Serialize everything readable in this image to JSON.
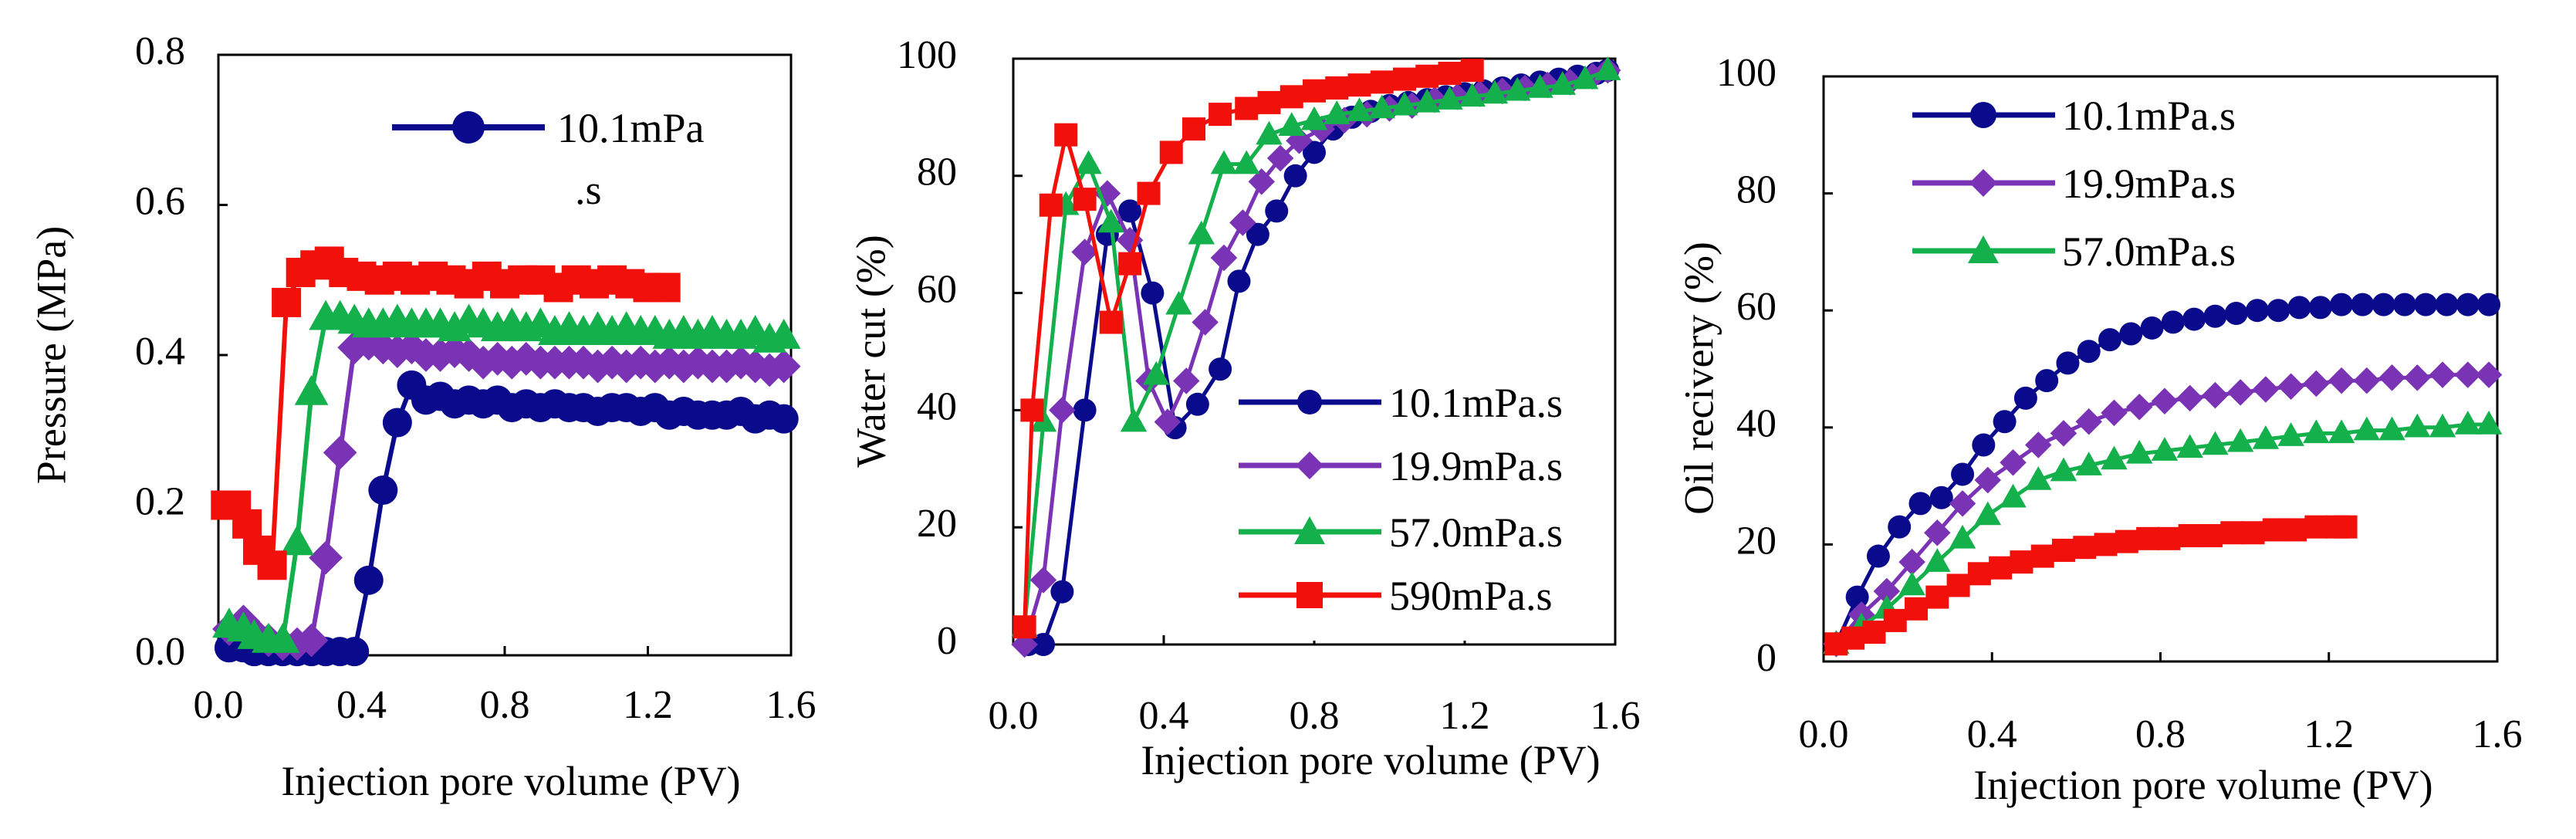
{
  "colors": {
    "s1": "#0a0a8c",
    "s2": "#7b33b5",
    "s3": "#13b04b",
    "s4": "#f2100b"
  },
  "chart_data": [
    {
      "type": "line",
      "title": "",
      "xlabel": "Injection pore volume (PV)",
      "ylabel": "Pressure (MPa)",
      "xlim": [
        0,
        1.6
      ],
      "ylim": [
        0,
        0.8
      ],
      "xticks": [
        "0.0",
        "0.4",
        "0.8",
        "1.2",
        "1.6"
      ],
      "yticks": [
        "0.0",
        "0.2",
        "0.4",
        "0.6",
        "0.8"
      ],
      "grid": false,
      "legend": [
        {
          "label": "10.1mPa",
          "label2": ".s",
          "series": 0
        }
      ],
      "series": [
        {
          "name": "10.1mPa.s",
          "color": "#0a0a8c",
          "marker": "circle",
          "x": [
            0.03,
            0.07,
            0.1,
            0.14,
            0.18,
            0.22,
            0.26,
            0.3,
            0.34,
            0.38,
            0.42,
            0.46,
            0.5,
            0.54,
            0.58,
            0.62,
            0.66,
            0.7,
            0.74,
            0.78,
            0.82,
            0.86,
            0.9,
            0.94,
            0.98,
            1.02,
            1.06,
            1.1,
            1.14,
            1.18,
            1.22,
            1.26,
            1.3,
            1.34,
            1.38,
            1.42,
            1.46,
            1.5,
            1.54,
            1.58
          ],
          "y": [
            0.01,
            0.01,
            0.005,
            0.005,
            0.005,
            0.005,
            0.005,
            0.005,
            0.005,
            0.005,
            0.1,
            0.22,
            0.31,
            0.36,
            0.34,
            0.345,
            0.335,
            0.34,
            0.335,
            0.34,
            0.33,
            0.335,
            0.33,
            0.335,
            0.33,
            0.33,
            0.325,
            0.33,
            0.33,
            0.325,
            0.33,
            0.32,
            0.325,
            0.32,
            0.32,
            0.32,
            0.325,
            0.315,
            0.32,
            0.315
          ]
        },
        {
          "name": "19.9mPa.s",
          "color": "#7b33b5",
          "marker": "diamond",
          "x": [
            0.03,
            0.07,
            0.1,
            0.14,
            0.18,
            0.22,
            0.26,
            0.3,
            0.34,
            0.38,
            0.42,
            0.46,
            0.5,
            0.54,
            0.58,
            0.62,
            0.66,
            0.7,
            0.74,
            0.78,
            0.82,
            0.86,
            0.9,
            0.94,
            0.98,
            1.02,
            1.06,
            1.1,
            1.14,
            1.18,
            1.22,
            1.26,
            1.3,
            1.34,
            1.38,
            1.42,
            1.46,
            1.5,
            1.54,
            1.58
          ],
          "y": [
            0.035,
            0.045,
            0.03,
            0.02,
            0.015,
            0.015,
            0.02,
            0.13,
            0.27,
            0.41,
            0.415,
            0.41,
            0.405,
            0.41,
            0.4,
            0.4,
            0.405,
            0.4,
            0.39,
            0.395,
            0.39,
            0.395,
            0.39,
            0.39,
            0.39,
            0.39,
            0.385,
            0.39,
            0.385,
            0.39,
            0.385,
            0.39,
            0.385,
            0.39,
            0.385,
            0.385,
            0.39,
            0.385,
            0.38,
            0.385
          ]
        },
        {
          "name": "57.0mPa.s",
          "color": "#13b04b",
          "marker": "triangle",
          "x": [
            0.03,
            0.07,
            0.1,
            0.14,
            0.18,
            0.22,
            0.26,
            0.3,
            0.34,
            0.38,
            0.42,
            0.46,
            0.5,
            0.54,
            0.58,
            0.62,
            0.66,
            0.7,
            0.74,
            0.78,
            0.82,
            0.86,
            0.9,
            0.94,
            0.98,
            1.02,
            1.06,
            1.1,
            1.14,
            1.18,
            1.22,
            1.26,
            1.3,
            1.34,
            1.38,
            1.42,
            1.46,
            1.5,
            1.54,
            1.58
          ],
          "y": [
            0.04,
            0.035,
            0.025,
            0.02,
            0.02,
            0.15,
            0.35,
            0.45,
            0.45,
            0.445,
            0.44,
            0.44,
            0.445,
            0.44,
            0.44,
            0.44,
            0.435,
            0.445,
            0.44,
            0.435,
            0.44,
            0.435,
            0.44,
            0.43,
            0.435,
            0.43,
            0.435,
            0.43,
            0.435,
            0.43,
            0.43,
            0.425,
            0.43,
            0.425,
            0.43,
            0.425,
            0.425,
            0.43,
            0.42,
            0.425
          ]
        },
        {
          "name": "590mPa.s",
          "color": "#f2100b",
          "marker": "square",
          "x": [
            0.02,
            0.05,
            0.08,
            0.11,
            0.15,
            0.19,
            0.23,
            0.27,
            0.31,
            0.35,
            0.4,
            0.45,
            0.5,
            0.55,
            0.6,
            0.65,
            0.7,
            0.75,
            0.8,
            0.85,
            0.9,
            0.95,
            1.0,
            1.05,
            1.1,
            1.15,
            1.2,
            1.25
          ],
          "y": [
            0.2,
            0.2,
            0.175,
            0.14,
            0.12,
            0.47,
            0.51,
            0.52,
            0.525,
            0.51,
            0.505,
            0.5,
            0.505,
            0.5,
            0.505,
            0.5,
            0.495,
            0.505,
            0.495,
            0.5,
            0.5,
            0.49,
            0.5,
            0.495,
            0.5,
            0.495,
            0.49,
            0.49
          ]
        }
      ]
    },
    {
      "type": "line",
      "title": "",
      "xlabel": "Injection pore volume (PV)",
      "ylabel": "Water cut (%)",
      "xlim": [
        0,
        1.6
      ],
      "ylim": [
        0,
        100
      ],
      "xticks": [
        "0.0",
        "0.4",
        "0.8",
        "1.2",
        "1.6"
      ],
      "yticks": [
        "0",
        "20",
        "40",
        "60",
        "80",
        "100"
      ],
      "grid": false,
      "legend": [
        {
          "label": "10.1mPa.s",
          "series": 0
        },
        {
          "label": "19.9mPa.s",
          "series": 1
        },
        {
          "label": "57.0mPa.s",
          "series": 2
        },
        {
          "label": "590mPa.s",
          "series": 3
        }
      ],
      "series": [
        {
          "name": "10.1mPa.s",
          "color": "#0a0a8c",
          "marker": "circle",
          "x": [
            0.04,
            0.08,
            0.13,
            0.19,
            0.25,
            0.31,
            0.37,
            0.43,
            0.49,
            0.55,
            0.6,
            0.65,
            0.7,
            0.75,
            0.8,
            0.85,
            0.9,
            0.95,
            1.0,
            1.05,
            1.1,
            1.15,
            1.2,
            1.25,
            1.3,
            1.35,
            1.4,
            1.45,
            1.5,
            1.55,
            1.58
          ],
          "y": [
            0,
            0,
            9,
            40,
            70,
            74,
            60,
            37,
            41,
            47,
            62,
            70,
            74,
            80,
            84,
            88,
            90,
            91,
            92,
            92.5,
            93,
            93.5,
            94,
            94.5,
            95,
            95.5,
            96,
            96.5,
            97,
            97.5,
            98
          ]
        },
        {
          "name": "19.9mPa.s",
          "color": "#7b33b5",
          "marker": "diamond",
          "x": [
            0.03,
            0.08,
            0.13,
            0.19,
            0.25,
            0.31,
            0.36,
            0.41,
            0.46,
            0.51,
            0.56,
            0.61,
            0.66,
            0.71,
            0.76,
            0.82,
            0.88,
            0.94,
            1.0,
            1.06,
            1.12,
            1.18,
            1.24,
            1.3,
            1.36,
            1.42,
            1.48,
            1.54,
            1.58
          ],
          "y": [
            0,
            11,
            40,
            67,
            77,
            69,
            45,
            38,
            45,
            55,
            66,
            72,
            79,
            83,
            86,
            88,
            89.5,
            90.5,
            91.5,
            92,
            93,
            93.5,
            94,
            94.5,
            95,
            95.5,
            96,
            97,
            98
          ]
        },
        {
          "name": "57.0mPa.s",
          "color": "#13b04b",
          "marker": "triangle",
          "x": [
            0.03,
            0.08,
            0.14,
            0.2,
            0.26,
            0.32,
            0.38,
            0.44,
            0.5,
            0.56,
            0.62,
            0.68,
            0.74,
            0.8,
            0.86,
            0.92,
            0.98,
            1.04,
            1.1,
            1.16,
            1.22,
            1.28,
            1.34,
            1.4,
            1.46,
            1.52,
            1.58
          ],
          "y": [
            3,
            38,
            75,
            82,
            72,
            38,
            46,
            58,
            70,
            82,
            82,
            87,
            88.5,
            89.5,
            90.5,
            91,
            91.5,
            92,
            92.5,
            93,
            93.5,
            94,
            94.5,
            95,
            95.5,
            96.5,
            98
          ]
        },
        {
          "name": "590mPa.s",
          "color": "#f2100b",
          "marker": "square",
          "x": [
            0.03,
            0.05,
            0.1,
            0.14,
            0.19,
            0.26,
            0.31,
            0.36,
            0.42,
            0.48,
            0.55,
            0.62,
            0.68,
            0.74,
            0.8,
            0.86,
            0.92,
            0.98,
            1.04,
            1.1,
            1.16,
            1.22
          ],
          "y": [
            3,
            40,
            75,
            87,
            76,
            55,
            65,
            77,
            84,
            88,
            90.5,
            91.5,
            92.5,
            93.5,
            94.5,
            95,
            95.5,
            96,
            96.5,
            97,
            97.5,
            98
          ]
        }
      ]
    },
    {
      "type": "line",
      "title": "",
      "xlabel": "Injection pore volume (PV)",
      "ylabel": "Oil recivery (%)",
      "xlim": [
        0,
        1.6
      ],
      "ylim": [
        0,
        100
      ],
      "xticks": [
        "0.0",
        "0.4",
        "0.8",
        "1.2",
        "1.6"
      ],
      "yticks": [
        "0",
        "20",
        "40",
        "60",
        "80",
        "100"
      ],
      "grid": false,
      "legend": [
        {
          "label": "10.1mPa.s",
          "series": 0
        },
        {
          "label": "19.9mPa.s",
          "series": 1
        },
        {
          "label": "57.0mPa.s",
          "series": 2
        }
      ],
      "series": [
        {
          "name": "10.1mPa.s",
          "color": "#0a0a8c",
          "marker": "circle",
          "x": [
            0.03,
            0.08,
            0.13,
            0.18,
            0.23,
            0.28,
            0.33,
            0.38,
            0.43,
            0.48,
            0.53,
            0.58,
            0.63,
            0.68,
            0.73,
            0.78,
            0.83,
            0.88,
            0.93,
            0.98,
            1.03,
            1.08,
            1.13,
            1.18,
            1.23,
            1.28,
            1.33,
            1.38,
            1.43,
            1.48,
            1.53,
            1.58
          ],
          "y": [
            3,
            11,
            18,
            23,
            27,
            28,
            32,
            37,
            41,
            45,
            48,
            51,
            53,
            55,
            56,
            57,
            58,
            58.5,
            59,
            59.5,
            60,
            60,
            60.5,
            60.5,
            61,
            61,
            61,
            61,
            61,
            61,
            61,
            61
          ]
        },
        {
          "name": "19.9mPa.s",
          "color": "#7b33b5",
          "marker": "diamond",
          "x": [
            0.03,
            0.09,
            0.15,
            0.21,
            0.27,
            0.33,
            0.39,
            0.45,
            0.51,
            0.57,
            0.63,
            0.69,
            0.75,
            0.81,
            0.87,
            0.93,
            0.99,
            1.05,
            1.11,
            1.17,
            1.23,
            1.29,
            1.35,
            1.41,
            1.47,
            1.53,
            1.58
          ],
          "y": [
            3,
            8,
            12,
            17,
            22,
            27,
            31,
            34,
            37,
            39,
            41,
            42.5,
            43.5,
            44.5,
            45,
            45.5,
            46,
            46.5,
            47,
            47.5,
            48,
            48,
            48.5,
            48.5,
            49,
            49,
            49
          ]
        },
        {
          "name": "57.0mPa.s",
          "color": "#13b04b",
          "marker": "triangle",
          "x": [
            0.03,
            0.09,
            0.15,
            0.21,
            0.27,
            0.33,
            0.39,
            0.45,
            0.51,
            0.57,
            0.63,
            0.69,
            0.75,
            0.81,
            0.87,
            0.93,
            0.99,
            1.05,
            1.11,
            1.17,
            1.23,
            1.29,
            1.35,
            1.41,
            1.47,
            1.53,
            1.58
          ],
          "y": [
            3,
            6,
            9,
            13,
            17,
            21,
            25,
            28,
            31,
            32.5,
            33.5,
            34.5,
            35.5,
            36,
            36.5,
            37,
            37.5,
            38,
            38.5,
            39,
            39,
            39.5,
            39.5,
            40,
            40,
            40.5,
            40.5
          ]
        },
        {
          "name": "590mPa.s",
          "color": "#f2100b",
          "marker": "square",
          "x": [
            0.03,
            0.07,
            0.12,
            0.17,
            0.22,
            0.27,
            0.32,
            0.37,
            0.42,
            0.47,
            0.52,
            0.57,
            0.62,
            0.67,
            0.72,
            0.77,
            0.82,
            0.87,
            0.92,
            0.97,
            1.02,
            1.07,
            1.12,
            1.17,
            1.22,
            1.24
          ],
          "y": [
            3,
            4,
            5,
            7,
            9,
            11,
            13,
            15,
            16,
            17,
            18,
            19,
            19.5,
            20,
            20.5,
            21,
            21,
            21.5,
            21.5,
            22,
            22,
            22.5,
            22.5,
            23,
            23,
            23
          ]
        }
      ]
    }
  ]
}
